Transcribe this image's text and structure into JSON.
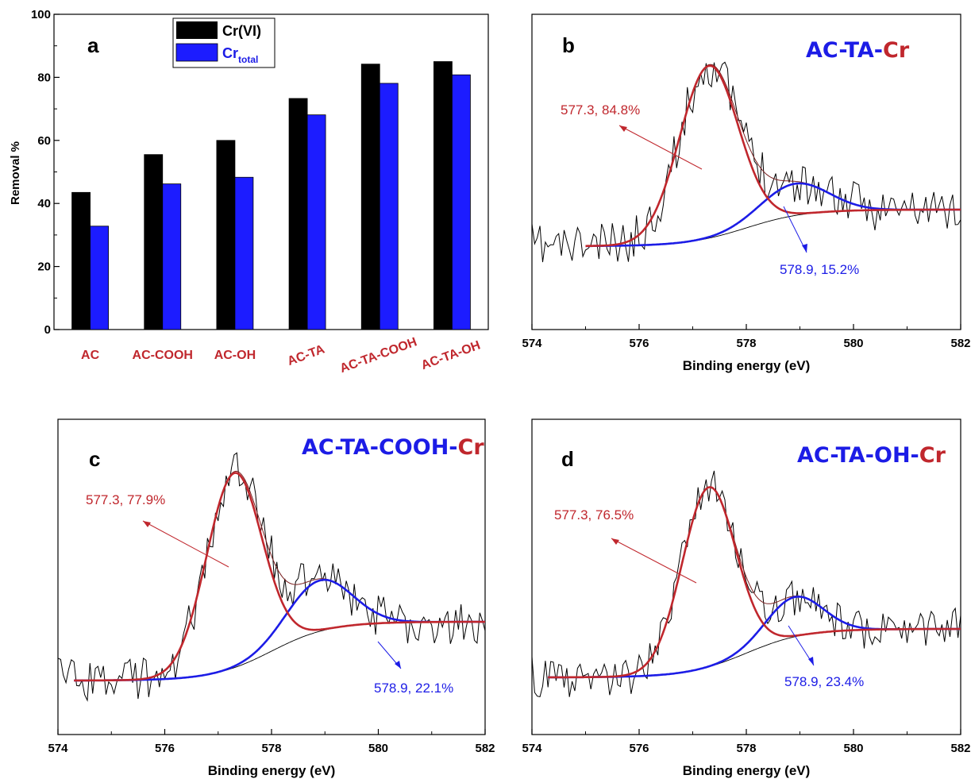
{
  "colors": {
    "cr_vi": "#000000",
    "cr_total": "#1c1cff",
    "red": "#c0272d",
    "blue": "#1c1ce6",
    "brown": "#7a2020"
  },
  "chart_data": [
    {
      "type": "bar",
      "panel": "a",
      "ylabel": "Removal %",
      "ylim": [
        0,
        100
      ],
      "yticks": [
        "0",
        "20",
        "40",
        "60",
        "80",
        "100"
      ],
      "categories": [
        "AC",
        "AC-COOH",
        "AC-OH",
        "AC-TA",
        "AC-TA-COOH",
        "AC-TA-OH"
      ],
      "legend_position": "top-left",
      "series": [
        {
          "name": "Cr(VI)",
          "legend_main": "Cr(VI)",
          "legend_sub": "",
          "color": "#000000",
          "values": [
            43.5,
            55.5,
            60.0,
            73.3,
            84.2,
            85.0
          ]
        },
        {
          "name": "Crtotal",
          "legend_main": "Cr",
          "legend_sub": "total",
          "color": "#1c1cff",
          "values": [
            32.8,
            46.2,
            48.3,
            68.1,
            78.1,
            80.8
          ]
        }
      ]
    },
    {
      "type": "line",
      "panel": "b",
      "title_parts": [
        "AC-TA-",
        "Cr"
      ],
      "xlabel": "Binding energy (eV)",
      "xlim": [
        574,
        582
      ],
      "xticks": [
        "574",
        "576",
        "578",
        "580",
        "582"
      ],
      "peak1": {
        "center": 577.3,
        "label": "577.3, 84.8%"
      },
      "peak2": {
        "center": 578.9,
        "label": "578.9, 15.2%"
      },
      "fit_range": [
        575.0,
        582.0
      ]
    },
    {
      "type": "line",
      "panel": "c",
      "title_parts": [
        "AC-TA-COOH-",
        "Cr"
      ],
      "xlabel": "Binding energy (eV)",
      "xlim": [
        574,
        582
      ],
      "xticks": [
        "574",
        "576",
        "578",
        "580",
        "582"
      ],
      "peak1": {
        "center": 577.3,
        "label": "577.3, 77.9%"
      },
      "peak2": {
        "center": 578.9,
        "label": "578.9, 22.1%"
      },
      "fit_range": [
        574.3,
        582.0
      ]
    },
    {
      "type": "line",
      "panel": "d",
      "title_parts": [
        "AC-TA-OH-",
        "Cr"
      ],
      "xlabel": "Binding energy (eV)",
      "xlim": [
        574,
        582
      ],
      "xticks": [
        "574",
        "576",
        "578",
        "580",
        "582"
      ],
      "peak1": {
        "center": 577.3,
        "label": "577.3, 76.5%"
      },
      "peak2": {
        "center": 578.9,
        "label": "578.9, 23.4%"
      },
      "fit_range": [
        574.3,
        582.0
      ]
    }
  ]
}
